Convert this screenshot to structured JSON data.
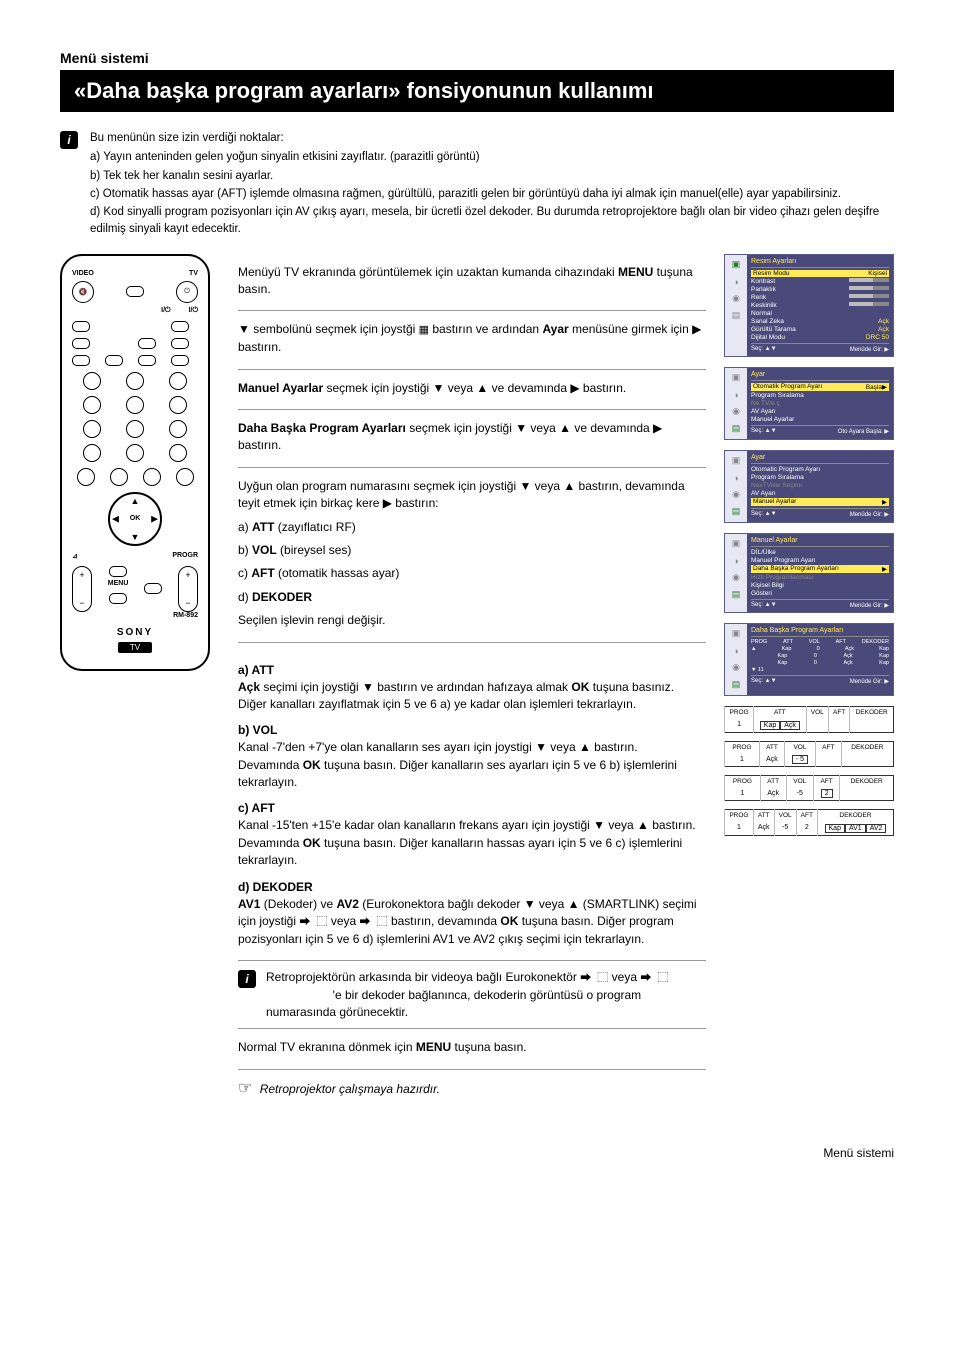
{
  "section_label": "Menü sistemi",
  "title_bar": "«Daha başka program ayarları» fonsiyonunun kullanımı",
  "intro": {
    "lead": "Bu menünün size izin verdiği noktalar:",
    "items": [
      "a) Yayın anteninden gelen yoğun sinyalin etkisini zayıflatır. (parazitli görüntü)",
      "b) Tek tek her kanalın sesini ayarlar.",
      "c) Otomatik hassas ayar (AFT) işlemde olmasına rağmen, gürültülü, parazitli gelen bir görüntüyü daha iyi almak için manuel(elle) ayar yapabilirsiniz.",
      "d) Kod sinyalli program pozisyonları için AV çıkış ayarı, mesela, bir ücretli özel dekoder. Bu durumda retroprojektore bağlı olan bir video çihazı gelen deşifre edilmiş sinyali kayıt edecektir."
    ]
  },
  "remote": {
    "top_labels": {
      "video": "VIDEO",
      "tv": "TV"
    },
    "power_label": "⏻",
    "menu_label": "MENU",
    "ok_label": "OK",
    "progr_label": "PROGR",
    "rm_label": "RM-892",
    "brand": "SONY",
    "tv_badge": "TV"
  },
  "steps": {
    "s1": {
      "text_a": "Menüyü TV ekranında görüntülemek için uzaktan kumanda cihazındaki ",
      "bold": "MENU",
      "text_b": " tuşuna  basın."
    },
    "s2": {
      "text_a": "▼ sembolünü seçmek için joystği ",
      "text_b": " bastırın ve ardından ",
      "bold": "Ayar",
      "text_c": " menüsüne girmek için ▶ bastırın."
    },
    "s3": {
      "bold": "Manuel Ayarlar",
      "text": " seçmek için joystiği ▼ veya ▲ ve devamında ▶ bastırın."
    },
    "s4": {
      "bold": "Daha Başka Program Ayarları",
      "text": " seçmek için joystiği ▼ veya ▲ ve devamında ▶ bastırın."
    },
    "s5": {
      "lead": "Uyğun olan program numarasını seçmek için joystiği ▼ veya ▲ bastırın, devamında teyit etmek için birkaç kere ▶ bastırın:",
      "a": {
        "lbl": "ATT",
        "txt": " (zayıflatıcı RF)"
      },
      "b": {
        "lbl": "VOL",
        "txt": " (bireysel ses)"
      },
      "c": {
        "lbl": "AFT",
        "txt": " (otomatik hassas ayar)"
      },
      "d": {
        "lbl": "DEKODER",
        "txt": ""
      },
      "tail": "Seçilen işlevin rengi değişir."
    },
    "s6": {
      "a": {
        "hd": "a) ATT",
        "text": "Açk seçimi için joystiği ▼ bastırın ve ardından hafızaya almak OK tuşuna basınız. Diğer kanalları zayıflatmak için 5 ve 6 a) ye kadar olan işlemleri tekrarlayın.",
        "bold1": "Açk",
        "bold2": "OK"
      },
      "b": {
        "hd": "b) VOL",
        "text": "Kanal -7'den +7'ye olan kanalların ses ayarı için joystigi ▼ veya ▲ bastırın. Devamında OK tuşuna basın. Diğer kanalların ses ayarları için 5 ve 6 b) işlemlerini tekrarlayın.",
        "bold": "OK"
      },
      "c": {
        "hd": "c) AFT",
        "text": "Kanal -15'ten +15'e kadar olan kanalların frekans ayarı için joystiği ▼ veya ▲ bastırın. Devamında OK tuşuna basın. Diğer kanalların hassas ayarı için 5 ve 6 c) işlemlerini tekrarlayın.",
        "bold": "OK"
      },
      "d": {
        "hd": "d) DEKODER",
        "text": "AV1 (Dekoder) ve AV2 (Eurokonektora bağlı dekoder ▼ veya ▲ (SMARTLINK) seçimi için joystiği ⮕   ⬚ veya ⮕   ⬚  bastırın, devamında OK tuşuna basın. Diğer program pozisyonları için 5 ve 6 d) işlemlerini AV1 ve AV2 çıkış seçimi için tekrarlayın.",
        "bold1": "AV1",
        "bold2": "AV2",
        "bold3": "OK"
      }
    },
    "note": "Retroprojektörün arkasında bir videoya bağlı Eurokonektör ⮕   ⬚ veya ⮕   ⬚                      'e bir dekoder bağlanınca, dekoderin görüntüsü o program numarasında görünecektir.",
    "s7": "Normal TV ekranına dönmek için MENU tuşuna basın.",
    "s7_bold": "MENU",
    "ready": "Retroprojektor çalışmaya hazırdır."
  },
  "screens": {
    "sc1": {
      "title": "Resim Ayarları",
      "lines": [
        {
          "k": "Resim Modu",
          "v": "Kişisel",
          "hl": true
        },
        {
          "k": "Kontrast",
          "bar": true
        },
        {
          "k": "Parlaklık",
          "bar": true
        },
        {
          "k": "Renk",
          "bar": true
        },
        {
          "k": "Keskinlik",
          "bar": true
        },
        {
          "k": "  Normal",
          "v": ""
        },
        {
          "k": "Sanal Zeka",
          "v": "Açk"
        },
        {
          "k": "Gürültü Tarama",
          "v": "Açk"
        },
        {
          "k": "Dijital Modu",
          "v": "DRC 50"
        }
      ],
      "footer_l": "Seç: ▲▼",
      "footer_r": "Menüde Gir: ▶"
    },
    "sc2": {
      "title": "Ayar",
      "lines": [
        {
          "k": "Otomatik Program Ayarı",
          "v": "Başla▶",
          "hl": true
        },
        {
          "k": "Program Sıralama",
          "v": ""
        },
        {
          "k": "Ne TV/e      ç",
          "v": "",
          "dim": true
        },
        {
          "k": "AV Ayarı",
          "v": ""
        },
        {
          "k": "Manuel Ayarlar",
          "v": ""
        }
      ],
      "footer_l": "Seç: ▲▼",
      "footer_r": "Oto Ayara Başla: ▶"
    },
    "sc3": {
      "title": "Ayar",
      "lines": [
        {
          "k": "Otomatic Program Ayarı",
          "v": ""
        },
        {
          "k": "Program Sıralama",
          "v": ""
        },
        {
          "k": "NexTView Seçimi",
          "v": "",
          "dim": true
        },
        {
          "k": "AV Ayarı",
          "v": ""
        },
        {
          "k": "Manuel Ayarlar",
          "v": "▶",
          "hl": true
        }
      ],
      "footer_l": "Seç: ▲▼",
      "footer_r": "Menüde Gir: ▶"
    },
    "sc4": {
      "title": "Manuel Ayarlar",
      "lines": [
        {
          "k": "DİL/Ülke",
          "v": ""
        },
        {
          "k": "Manuel Program Ayarı",
          "v": ""
        },
        {
          "k": "Daha Başka Program Ayarları",
          "v": "▶",
          "hl": true
        },
        {
          "k": "Hızlı Programlanması",
          "v": "",
          "dim": true
        },
        {
          "k": "Kişisel Bilgi",
          "v": ""
        },
        {
          "k": "Gösteri",
          "v": ""
        }
      ],
      "footer_l": "Seç: ▲▼",
      "footer_r": "Menüde Gir: ▶"
    },
    "sc5": {
      "title": "Daha Başka Program Ayarları",
      "header": [
        "PROG",
        "ATT",
        "VOL",
        "AFT",
        "DEKODER"
      ],
      "rows": [
        [
          "▲",
          "Kap",
          "0",
          "Açk",
          "Kap"
        ],
        [
          "",
          "Kap",
          "0",
          "Açk",
          "Kap"
        ],
        [
          "",
          "Kap",
          "0",
          "Açk",
          "Kap"
        ]
      ],
      "footer_l": "Seç: ▲▼",
      "footer_r": "Menüde Gir: ▶"
    },
    "tbl_headers": [
      "PROG",
      "ATT",
      "VOL",
      "AFT",
      "DEKODER"
    ],
    "tbl1": {
      "prog": "1",
      "att": "Kap",
      "att2": "Açk",
      "vol": "",
      "aft": "",
      "dek": ""
    },
    "tbl2": {
      "prog": "1",
      "att": "Açk",
      "vol": "- 5",
      "aft": "",
      "dek": ""
    },
    "tbl3": {
      "prog": "1",
      "att": "Açk",
      "vol": "-5",
      "aft": "2",
      "dek": ""
    },
    "tbl4": {
      "prog": "1",
      "att": "Açk",
      "vol": "-5",
      "aft": "2",
      "dek": "Kap",
      "dek2": "AV1",
      "dek3": "AV2"
    }
  },
  "footer_text": "Menü sistemi"
}
